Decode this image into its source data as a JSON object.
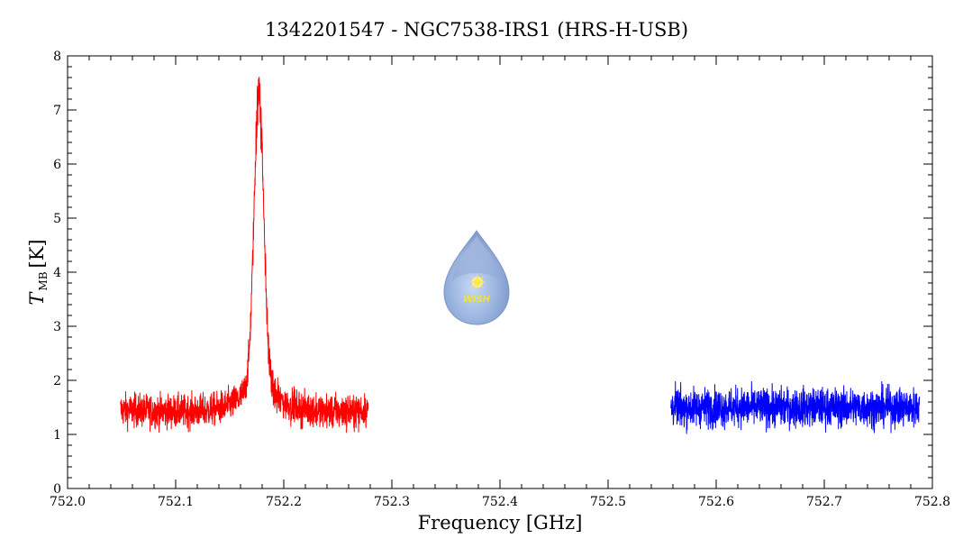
{
  "chart_data": {
    "type": "line",
    "title": "1342201547 - NGC7538-IRS1 (HRS-H-USB)",
    "xlabel": "Frequency [GHz]",
    "ylabel_main": "T",
    "ylabel_sub": "MB",
    "ylabel_unit": "[K]",
    "xlim": [
      752.0,
      752.8
    ],
    "ylim": [
      0,
      8
    ],
    "x_ticks": [
      752.0,
      752.1,
      752.2,
      752.3,
      752.4,
      752.5,
      752.6,
      752.7,
      752.8
    ],
    "x_tick_labels": [
      "752.0",
      "752.1",
      "752.2",
      "752.3",
      "752.4",
      "752.5",
      "752.6",
      "752.7",
      "752.8"
    ],
    "y_ticks": [
      0,
      1,
      2,
      3,
      4,
      5,
      6,
      7,
      8
    ],
    "y_tick_labels": [
      "0",
      "1",
      "2",
      "3",
      "4",
      "5",
      "6",
      "7",
      "8"
    ],
    "grid": false,
    "series": [
      {
        "color": "#ff0000",
        "x_range": [
          752.049,
          752.278
        ],
        "baseline": 1.5,
        "noise_amplitude": 0.3,
        "peak": {
          "x": 752.177,
          "y": 6.7,
          "max": 7.15,
          "width": 0.0045
        },
        "wing": {
          "amplitude": 0.9,
          "width": 0.02
        },
        "points": [
          [
            752.05,
            1.5
          ],
          [
            752.07,
            1.45
          ],
          [
            752.09,
            1.5
          ],
          [
            752.11,
            1.55
          ],
          [
            752.13,
            1.65
          ],
          [
            752.15,
            1.85
          ],
          [
            752.16,
            2.1
          ],
          [
            752.17,
            3.0
          ],
          [
            752.175,
            6.2
          ],
          [
            752.177,
            7.15
          ],
          [
            752.18,
            6.3
          ],
          [
            752.185,
            3.5
          ],
          [
            752.19,
            2.4
          ],
          [
            752.2,
            1.9
          ],
          [
            752.22,
            1.7
          ],
          [
            752.24,
            1.6
          ],
          [
            752.26,
            1.55
          ],
          [
            752.278,
            1.5
          ]
        ]
      },
      {
        "color": "#0000ff",
        "x_range": [
          752.558,
          752.788
        ],
        "baseline": 1.5,
        "noise_amplitude": 0.35,
        "points": [
          [
            752.56,
            1.5
          ],
          [
            752.6,
            1.5
          ],
          [
            752.65,
            1.45
          ],
          [
            752.7,
            1.5
          ],
          [
            752.75,
            1.55
          ],
          [
            752.788,
            1.5
          ]
        ]
      }
    ]
  },
  "logo": {
    "text": "WISH",
    "icon": "water-drop-star-icon",
    "color_body": "#8fa8d8",
    "color_text": "#f0e040"
  }
}
